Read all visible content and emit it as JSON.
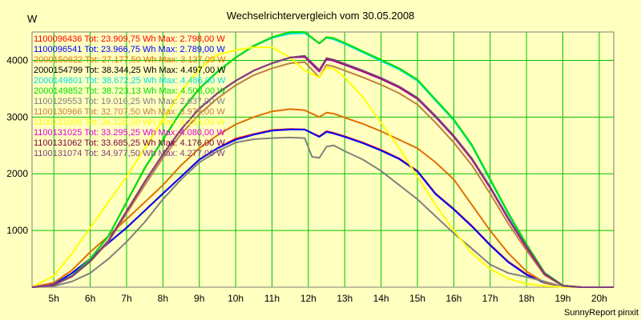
{
  "chart_data": {
    "type": "line",
    "title": "Wechselrichtervergleich vom 30.05.2008",
    "y_unit": "W",
    "credit": "SunnyReport pinxit",
    "background_color": "#ffffc0",
    "grid_color": "#00c000",
    "grid": true,
    "legend_placement": "top-left",
    "x_ticks": [
      "5h",
      "6h",
      "7h",
      "8h",
      "9h",
      "10h",
      "11h",
      "12h",
      "13h",
      "14h",
      "15h",
      "16h",
      "17h",
      "18h",
      "19h",
      "20h"
    ],
    "x_tick_values": [
      5,
      6,
      7,
      8,
      9,
      10,
      11,
      12,
      13,
      14,
      15,
      16,
      17,
      18,
      19,
      20
    ],
    "y_ticks": [
      1000,
      2000,
      3000,
      4000
    ],
    "xlim": [
      4.4,
      20.4
    ],
    "ylim": [
      0,
      4500
    ],
    "series": [
      {
        "name": "1100096436",
        "legend": "1100096436 Tot: 23.909,75 Wh Max: 2.798,00 W",
        "color": "#ff0000",
        "x": [
          4.4,
          5,
          5.5,
          6,
          6.5,
          7,
          7.5,
          8,
          8.5,
          9,
          9.5,
          10,
          10.5,
          11,
          11.5,
          11.9,
          12.3,
          12.5,
          12.7,
          13,
          13.5,
          14,
          14.5,
          15,
          15.5,
          16,
          16.5,
          17,
          17.5,
          18,
          18.5,
          19,
          19.5,
          20,
          20.4
        ],
        "y": [
          0,
          50,
          250,
          500,
          780,
          1050,
          1350,
          1650,
          1950,
          2250,
          2450,
          2620,
          2700,
          2770,
          2790,
          2780,
          2660,
          2750,
          2720,
          2660,
          2550,
          2420,
          2270,
          2050,
          1650,
          1380,
          1080,
          750,
          450,
          230,
          80,
          10,
          0,
          0,
          0
        ]
      },
      {
        "name": "1100096541",
        "legend": "1100096541 Tot: 23.966,75 Wh Max: 2.789,00 W",
        "color": "#0000ff",
        "x": [
          4.4,
          5,
          5.5,
          6,
          6.5,
          7,
          7.5,
          8,
          8.5,
          9,
          9.5,
          10,
          10.5,
          11,
          11.5,
          11.9,
          12.3,
          12.5,
          12.7,
          13,
          13.5,
          14,
          14.5,
          15,
          15.5,
          16,
          16.5,
          17,
          17.5,
          18,
          18.5,
          19,
          19.5,
          20,
          20.4
        ],
        "y": [
          0,
          50,
          250,
          500,
          780,
          1050,
          1350,
          1650,
          1950,
          2250,
          2450,
          2600,
          2690,
          2760,
          2780,
          2780,
          2650,
          2740,
          2710,
          2650,
          2540,
          2410,
          2260,
          2040,
          1640,
          1370,
          1070,
          740,
          440,
          220,
          75,
          10,
          0,
          0,
          0
        ]
      },
      {
        "name": "2000150622",
        "legend": "2000150622 Tot: 27.177,50 Wh Max: 3.137,00 W",
        "color": "#e07000",
        "x": [
          4.4,
          5,
          5.5,
          6,
          6.5,
          7,
          7.5,
          8,
          8.5,
          9,
          9.5,
          10,
          10.5,
          11,
          11.5,
          11.9,
          12.3,
          12.5,
          12.7,
          13,
          13.5,
          14,
          14.5,
          15,
          15.5,
          16,
          16.5,
          17,
          17.5,
          18,
          18.5,
          19,
          19.5,
          20,
          20.4
        ],
        "y": [
          0,
          80,
          300,
          620,
          900,
          1200,
          1500,
          1800,
          2150,
          2450,
          2680,
          2870,
          3000,
          3100,
          3140,
          3120,
          3000,
          3080,
          3060,
          2990,
          2880,
          2750,
          2600,
          2450,
          2200,
          1900,
          1450,
          1000,
          600,
          280,
          80,
          10,
          0,
          0,
          0
        ]
      },
      {
        "name": "2000154799",
        "legend": "2000154799 Tot: 38.344,25 Wh Max: 4.497,00 W",
        "color": "#000000",
        "x": [
          4.4,
          5,
          5.5,
          6,
          6.5,
          7,
          7.5,
          8,
          8.5,
          9,
          9.5,
          10,
          10.5,
          11,
          11.5,
          11.9,
          12.3,
          12.5,
          12.7,
          13,
          13.5,
          14,
          14.5,
          15,
          15.5,
          16,
          16.5,
          17,
          17.5,
          18,
          18.5,
          19,
          19.5,
          20,
          20.4
        ],
        "y": [
          0,
          40,
          200,
          500,
          900,
          1500,
          2100,
          2600,
          3100,
          3500,
          3800,
          4050,
          4250,
          4400,
          4480,
          4490,
          4300,
          4400,
          4380,
          4300,
          4150,
          4000,
          3850,
          3650,
          3300,
          2950,
          2500,
          1900,
          1300,
          750,
          250,
          30,
          0,
          0,
          0
        ]
      },
      {
        "name": "2000149801",
        "legend": "2000149801 Tot: 38.672,25 Wh Max: 4.486,00 W",
        "color": "#00e0e0",
        "x": [
          4.4,
          5,
          5.5,
          6,
          6.5,
          7,
          7.5,
          8,
          8.5,
          9,
          9.5,
          10,
          10.5,
          11,
          11.5,
          11.9,
          12.3,
          12.5,
          12.7,
          13,
          13.5,
          14,
          14.5,
          15,
          15.5,
          16,
          16.5,
          17,
          17.5,
          18,
          18.5,
          19,
          19.5,
          20,
          20.4
        ],
        "y": [
          0,
          40,
          200,
          500,
          900,
          1500,
          2100,
          2600,
          3100,
          3500,
          3800,
          4050,
          4250,
          4400,
          4470,
          4480,
          4300,
          4400,
          4370,
          4290,
          4140,
          3990,
          3840,
          3640,
          3290,
          2940,
          2490,
          1890,
          1290,
          740,
          245,
          30,
          0,
          0,
          0
        ]
      },
      {
        "name": "2000149852",
        "legend": "2000149852 Tot: 38.723,13 Wh Max: 4.508,00 W",
        "color": "#00e000",
        "x": [
          4.4,
          5,
          5.5,
          6,
          6.5,
          7,
          7.5,
          8,
          8.5,
          9,
          9.5,
          10,
          10.5,
          11,
          11.5,
          11.9,
          12.3,
          12.5,
          12.7,
          13,
          13.5,
          14,
          14.5,
          15,
          15.5,
          16,
          16.5,
          17,
          17.5,
          18,
          18.5,
          19,
          19.5,
          20,
          20.4
        ],
        "y": [
          0,
          40,
          200,
          500,
          900,
          1500,
          2100,
          2600,
          3100,
          3500,
          3800,
          4050,
          4260,
          4410,
          4500,
          4500,
          4300,
          4410,
          4390,
          4310,
          4160,
          4010,
          3860,
          3660,
          3310,
          2960,
          2510,
          1910,
          1310,
          760,
          255,
          30,
          0,
          0,
          0
        ]
      },
      {
        "name": "1100129553",
        "legend": "1100129553 Tot: 19.016,25 Wh Max: 2.637,00 W",
        "color": "#808080",
        "x": [
          4.4,
          5,
          5.5,
          6,
          6.5,
          7,
          7.5,
          8,
          8.5,
          9,
          9.5,
          10,
          10.5,
          11,
          11.5,
          11.9,
          12.1,
          12.3,
          12.5,
          12.7,
          13,
          13.5,
          14,
          14.5,
          15,
          15.5,
          16,
          16.5,
          17,
          17.5,
          18,
          18.5,
          19,
          19.5,
          20,
          20.4
        ],
        "y": [
          0,
          20,
          100,
          250,
          500,
          800,
          1150,
          1550,
          1900,
          2200,
          2400,
          2550,
          2610,
          2630,
          2640,
          2630,
          2300,
          2280,
          2480,
          2500,
          2400,
          2250,
          2050,
          1800,
          1550,
          1250,
          950,
          680,
          400,
          250,
          180,
          100,
          10,
          0,
          0,
          0
        ]
      },
      {
        "name": "1100130966",
        "legend": "1100130966 Tot: 32.707,50 Wh Max: 3.979,00 W",
        "color": "#c08040",
        "x": [
          4.4,
          5,
          5.5,
          6,
          6.5,
          7,
          7.5,
          8,
          8.5,
          9,
          9.5,
          10,
          10.5,
          11,
          11.5,
          11.9,
          12.3,
          12.5,
          12.7,
          13,
          13.5,
          14,
          14.5,
          15,
          15.5,
          16,
          16.5,
          17,
          17.5,
          18,
          18.5,
          19,
          19.5,
          20,
          20.4
        ],
        "y": [
          0,
          40,
          190,
          450,
          800,
          1300,
          1800,
          2280,
          2700,
          3050,
          3330,
          3560,
          3740,
          3860,
          3950,
          3970,
          3700,
          3920,
          3890,
          3820,
          3700,
          3570,
          3420,
          3220,
          2900,
          2550,
          2150,
          1650,
          1120,
          650,
          210,
          25,
          0,
          0,
          0
        ]
      },
      {
        "name": "1100131006",
        "legend": "1100131006 Tot: 34.126,50 Wh Max: 4.234,00 W",
        "color": "#ffff00",
        "x": [
          4.4,
          5,
          5.5,
          6,
          6.5,
          7,
          7.5,
          8,
          8.5,
          9,
          9.5,
          10,
          10.5,
          11,
          11.5,
          11.9,
          12.3,
          12.5,
          12.7,
          13,
          13.5,
          14,
          14.5,
          15,
          15.5,
          16,
          16.5,
          17,
          17.5,
          18,
          18.5,
          19,
          19.5,
          20,
          20.4
        ],
        "y": [
          0,
          200,
          600,
          1050,
          1500,
          1950,
          2450,
          2950,
          3450,
          3850,
          4100,
          4180,
          4230,
          4230,
          4050,
          3820,
          3700,
          3880,
          3850,
          3700,
          3350,
          2900,
          2450,
          1950,
          1450,
          1000,
          600,
          320,
          150,
          60,
          20,
          5,
          0,
          0,
          0
        ]
      },
      {
        "name": "1100131025",
        "legend": "1100131025 Tot: 33.295,25 Wh Max: 4.080,00 W",
        "color": "#e000e0",
        "x": [
          4.4,
          5,
          5.5,
          6,
          6.5,
          7,
          7.5,
          8,
          8.5,
          9,
          9.5,
          10,
          10.5,
          11,
          11.5,
          11.9,
          12.3,
          12.5,
          12.7,
          13,
          13.5,
          14,
          14.5,
          15,
          15.5,
          16,
          16.5,
          17,
          17.5,
          18,
          18.5,
          19,
          19.5,
          20,
          20.4
        ],
        "y": [
          0,
          40,
          190,
          460,
          820,
          1340,
          1860,
          2340,
          2780,
          3150,
          3420,
          3640,
          3820,
          3950,
          4050,
          4060,
          3800,
          4020,
          3990,
          3920,
          3800,
          3670,
          3520,
          3320,
          3000,
          2650,
          2250,
          1750,
          1200,
          700,
          230,
          25,
          0,
          0,
          0
        ]
      },
      {
        "name": "1100131062",
        "legend": "1100131062 Tot: 33.685,25 Wh Max: 4.176,00 W",
        "color": "#800040",
        "x": [
          4.4,
          5,
          5.5,
          6,
          6.5,
          7,
          7.5,
          8,
          8.5,
          9,
          9.5,
          10,
          10.5,
          11,
          11.5,
          11.9,
          12.3,
          12.5,
          12.7,
          13,
          13.5,
          14,
          14.5,
          15,
          15.5,
          16,
          16.5,
          17,
          17.5,
          18,
          18.5,
          19,
          19.5,
          20,
          20.4
        ],
        "y": [
          0,
          40,
          190,
          460,
          820,
          1340,
          1860,
          2340,
          2780,
          3150,
          3420,
          3640,
          3820,
          3950,
          4050,
          4070,
          3820,
          4030,
          4000,
          3930,
          3810,
          3680,
          3530,
          3330,
          3010,
          2660,
          2260,
          1760,
          1210,
          710,
          235,
          25,
          0,
          0,
          0
        ]
      },
      {
        "name": "1100131074",
        "legend": "1100131074 Tot: 34.977,50 Wh Max: 4.277,00 W",
        "color": "#804080",
        "x": [
          4.4,
          5,
          5.5,
          6,
          6.5,
          7,
          7.5,
          8,
          8.5,
          9,
          9.5,
          10,
          10.5,
          11,
          11.5,
          11.9,
          12.3,
          12.5,
          12.7,
          13,
          13.5,
          14,
          14.5,
          15,
          15.5,
          16,
          16.5,
          17,
          17.5,
          18,
          18.5,
          19,
          19.5,
          20,
          20.4
        ],
        "y": [
          0,
          40,
          190,
          460,
          820,
          1340,
          1860,
          2340,
          2780,
          3150,
          3420,
          3640,
          3820,
          3950,
          4050,
          4080,
          3830,
          4040,
          4010,
          3940,
          3820,
          3690,
          3540,
          3340,
          3020,
          2670,
          2270,
          1770,
          1220,
          720,
          240,
          25,
          0,
          0,
          0
        ]
      }
    ]
  }
}
